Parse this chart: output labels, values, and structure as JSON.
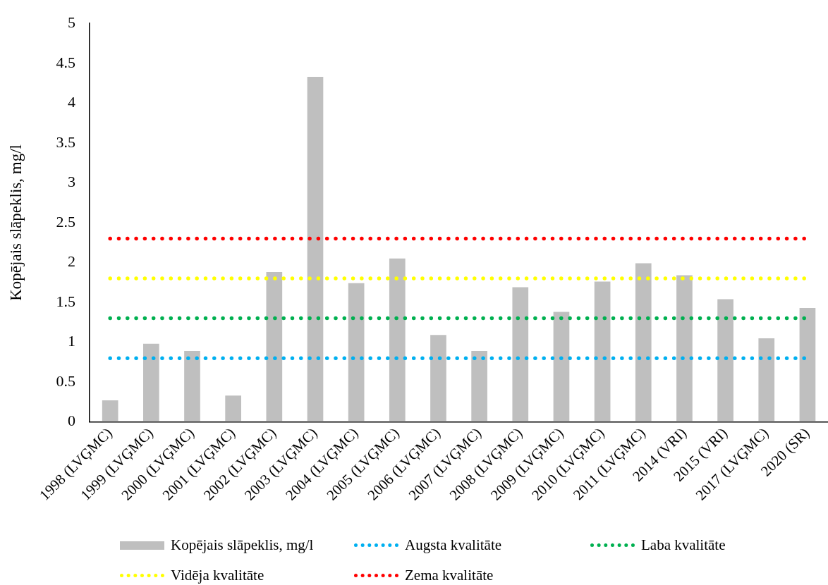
{
  "chart_data": {
    "type": "bar",
    "ylabel": "Kopējais slāpeklis, mg/l",
    "categories": [
      "1998 (LVĢMC)",
      "1999 (LVĢMC)",
      "2000 (LVĢMC)",
      "2001 (LVĢMC)",
      "2002 (LVĢMC)",
      "2003 (LVĢMC)",
      "2004 (LVĢMC)",
      "2005 (LVĢMC)",
      "2006 (LVĢMC)",
      "2007 (LVĢMC)",
      "2008 (LVĢMC)",
      "2009 (LVĢMC)",
      "2010 (LVĢMC)",
      "2011 (LVĢMC)",
      "2014 (VRI)",
      "2015 (VRI)",
      "2017 (LVĢMC)",
      "2020 (SR)"
    ],
    "series": [
      {
        "name": "Kopējais slāpeklis, mg/l",
        "color": "#bfbfbf",
        "values": [
          0.27,
          0.98,
          0.89,
          0.33,
          1.88,
          4.33,
          1.74,
          2.05,
          1.09,
          0.89,
          1.69,
          1.38,
          1.76,
          1.99,
          1.84,
          1.54,
          1.05,
          1.43
        ]
      },
      {
        "name": "Augsta kvalitāte",
        "type": "line",
        "line_style": "dotted",
        "color": "#00b0f0",
        "values": [
          0.8,
          0.8,
          0.8,
          0.8,
          0.8,
          0.8,
          0.8,
          0.8,
          0.8,
          0.8,
          0.8,
          0.8,
          0.8,
          0.8,
          0.8,
          0.8,
          0.8,
          0.8
        ]
      },
      {
        "name": "Laba kvalitāte",
        "type": "line",
        "line_style": "dotted",
        "color": "#00b050",
        "values": [
          1.3,
          1.3,
          1.3,
          1.3,
          1.3,
          1.3,
          1.3,
          1.3,
          1.3,
          1.3,
          1.3,
          1.3,
          1.3,
          1.3,
          1.3,
          1.3,
          1.3,
          1.3
        ]
      },
      {
        "name": "Vidēja kvalitāte",
        "type": "line",
        "line_style": "dotted",
        "color": "#ffff00",
        "values": [
          1.8,
          1.8,
          1.8,
          1.8,
          1.8,
          1.8,
          1.8,
          1.8,
          1.8,
          1.8,
          1.8,
          1.8,
          1.8,
          1.8,
          1.8,
          1.8,
          1.8,
          1.8
        ]
      },
      {
        "name": "Zema kvalitāte",
        "type": "line",
        "line_style": "dotted",
        "color": "#ff0000",
        "values": [
          2.3,
          2.3,
          2.3,
          2.3,
          2.3,
          2.3,
          2.3,
          2.3,
          2.3,
          2.3,
          2.3,
          2.3,
          2.3,
          2.3,
          2.3,
          2.3,
          2.3,
          2.3
        ]
      }
    ],
    "ylim": [
      0,
      5
    ],
    "yticks": [
      0,
      0.5,
      1,
      1.5,
      2,
      2.5,
      3,
      3.5,
      4,
      4.5,
      5
    ],
    "marker": "none",
    "legend": "bottom"
  }
}
